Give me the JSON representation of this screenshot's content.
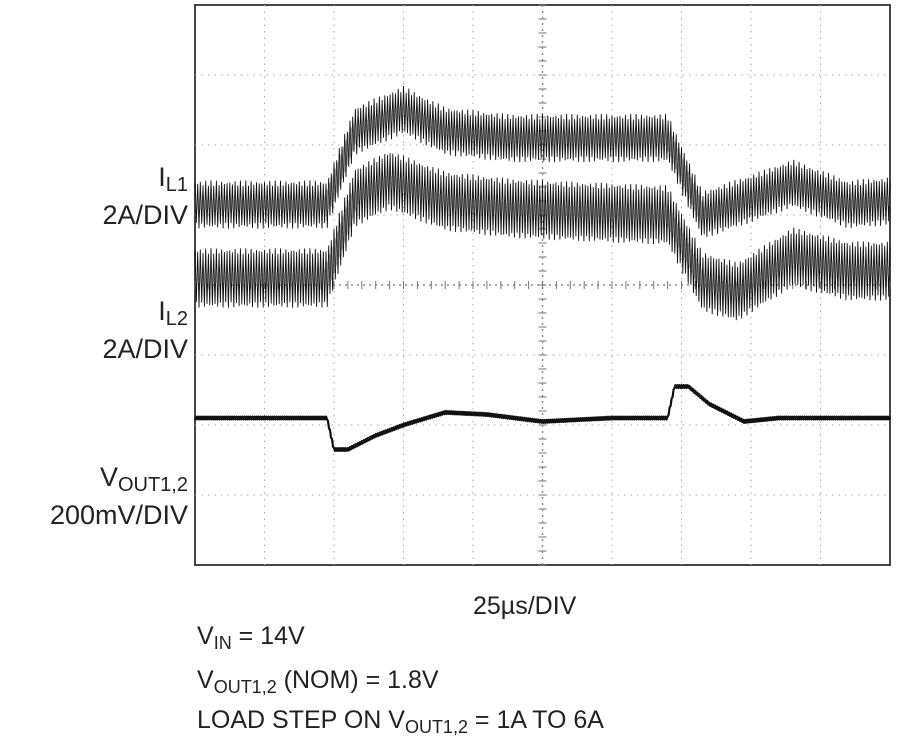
{
  "chart_data": {
    "type": "line",
    "title": "",
    "grid": true,
    "divisions": {
      "x": 10,
      "y": 8
    },
    "time_scale": "25µs/DIV",
    "series": [
      {
        "name_main": "I",
        "name_sub": "L1",
        "scale": "2A/DIV",
        "x_div": [
          0,
          1.9,
          2.3,
          3.0,
          3.6,
          4.5,
          5.5,
          6.8,
          7.3,
          7.9,
          8.6,
          9.4,
          10
        ],
        "y_div": [
          -0.6,
          -0.6,
          0.45,
          0.75,
          0.45,
          0.35,
          0.35,
          0.35,
          -0.75,
          -0.55,
          -0.3,
          -0.6,
          -0.55
        ],
        "ripple_div": 0.3,
        "baseline_div": 5.75
      },
      {
        "name_main": "I",
        "name_sub": "L2",
        "scale": "2A/DIV",
        "x_div": [
          0,
          1.9,
          2.3,
          2.8,
          3.6,
          4.5,
          5.5,
          6.8,
          7.3,
          7.8,
          8.6,
          9.4,
          10
        ],
        "y_div": [
          -0.55,
          -0.55,
          0.6,
          0.85,
          0.55,
          0.45,
          0.4,
          0.35,
          -0.6,
          -0.75,
          -0.25,
          -0.45,
          -0.45
        ],
        "ripple_div": 0.38,
        "baseline_div": 4.65
      },
      {
        "name_main": "V",
        "name_sub": "OUT1,2",
        "scale": "200mV/DIV",
        "x_div": [
          0,
          1.9,
          2.0,
          2.2,
          2.6,
          3.0,
          3.6,
          4.2,
          5.0,
          6.0,
          6.8,
          6.9,
          7.1,
          7.4,
          7.9,
          8.4,
          10
        ],
        "y_div": [
          0,
          0,
          -0.45,
          -0.45,
          -0.25,
          -0.1,
          0.08,
          0.05,
          -0.05,
          0,
          0,
          0.45,
          0.45,
          0.2,
          -0.05,
          0,
          0
        ],
        "ripple_div": 0.02,
        "baseline_div": 2.1
      }
    ],
    "conditions": [
      {
        "pre": "V",
        "sub": "IN",
        "post": " = 14V"
      },
      {
        "pre": "V",
        "sub": "OUT1,2",
        "post": " (NOM) = 1.8V"
      },
      {
        "pre": "LOAD STEP ON V",
        "sub": "OUT1,2",
        "post": " = 1A TO 6A"
      }
    ]
  }
}
